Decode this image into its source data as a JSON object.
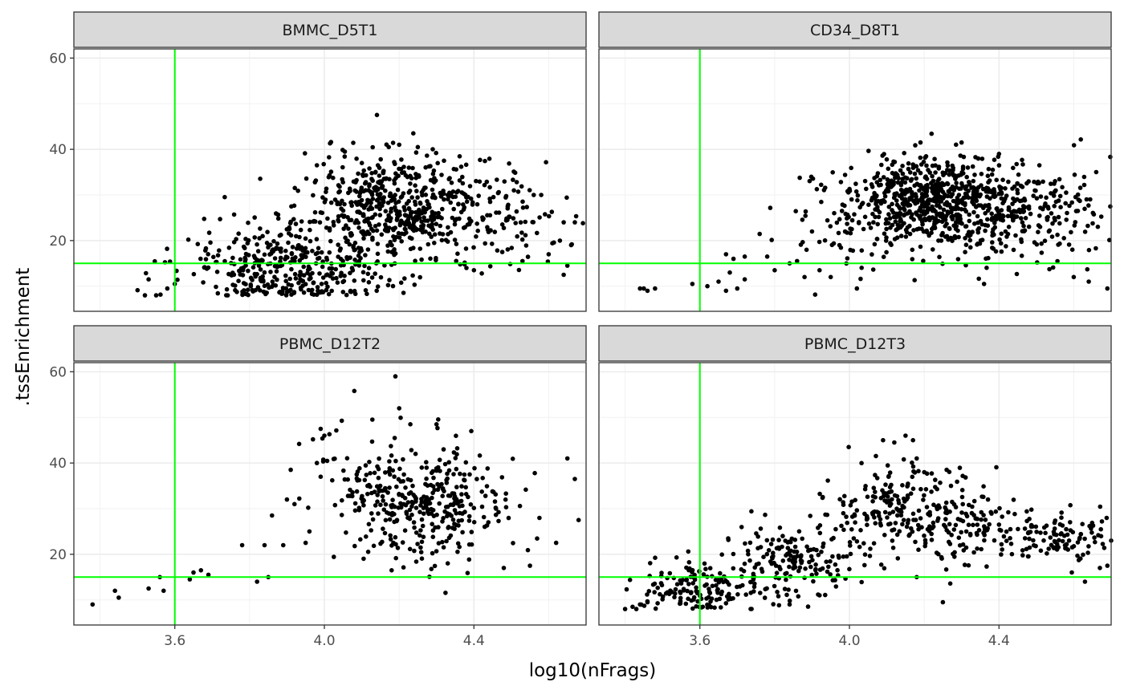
{
  "chart_data": {
    "type": "scatter",
    "layout": "facet_wrap 2x2",
    "xlabel": "log10(nFrags)",
    "ylabel": ".tssEnrichment",
    "xlim": [
      3.33,
      4.7
    ],
    "ylim": [
      4.5,
      62
    ],
    "xticks": [
      3.6,
      4.0,
      4.4
    ],
    "xtick_labels": [
      "3.6",
      "4.0",
      "4.4"
    ],
    "yticks": [
      20,
      40,
      60
    ],
    "ytick_labels": [
      "20",
      "40",
      "60"
    ],
    "threshold_lines": {
      "x": 3.6,
      "y": 15,
      "color": "#00ff00"
    },
    "point_color": "#000000",
    "grid": true,
    "panels": [
      {
        "title": "BMMC_D5T1",
        "clusters": [
          {
            "n": 380,
            "cx": 3.9,
            "cy": 14,
            "sx": 0.13,
            "sy": 5
          },
          {
            "n": 480,
            "cx": 4.18,
            "cy": 28,
            "sx": 0.12,
            "sy": 6
          },
          {
            "n": 140,
            "cx": 4.42,
            "cy": 25,
            "sx": 0.12,
            "sy": 6
          }
        ],
        "points": [
          [
            3.52,
            8.0
          ],
          [
            3.55,
            8.0
          ],
          [
            3.53,
            11.5
          ],
          [
            3.58,
            9.5
          ],
          [
            3.6,
            10.5
          ],
          [
            4.2,
            41.0
          ],
          [
            4.25,
            40.5
          ],
          [
            4.32,
            37.5
          ],
          [
            3.98,
            36.5
          ],
          [
            4.56,
            30.0
          ],
          [
            4.58,
            30.0
          ],
          [
            4.64,
            24.0
          ],
          [
            4.67,
            24.0
          ],
          [
            4.63,
            20.0
          ],
          [
            4.66,
            19.0
          ],
          [
            4.6,
            17.0
          ],
          [
            4.64,
            12.5
          ],
          [
            4.65,
            14.5
          ],
          [
            4.53,
            15.5
          ],
          [
            4.4,
            13.5
          ],
          [
            4.38,
            14.0
          ],
          [
            4.14,
            9.0
          ]
        ]
      },
      {
        "title": "CD34_D8T1",
        "clusters": [
          {
            "n": 520,
            "cx": 4.22,
            "cy": 29,
            "sx": 0.1,
            "sy": 4.5
          },
          {
            "n": 340,
            "cx": 4.42,
            "cy": 26,
            "sx": 0.15,
            "sy": 5
          },
          {
            "n": 70,
            "cx": 3.97,
            "cy": 22,
            "sx": 0.08,
            "sy": 6
          }
        ],
        "points": [
          [
            3.44,
            9.5
          ],
          [
            3.45,
            9.5
          ],
          [
            3.46,
            9.0
          ],
          [
            3.48,
            9.5
          ],
          [
            3.58,
            10.5
          ],
          [
            3.62,
            10.0
          ],
          [
            3.65,
            11.0
          ],
          [
            3.67,
            9.0
          ],
          [
            3.7,
            9.5
          ],
          [
            3.72,
            11.5
          ],
          [
            3.68,
            13.0
          ],
          [
            3.67,
            17.0
          ],
          [
            3.69,
            16.0
          ],
          [
            3.72,
            16.5
          ],
          [
            3.78,
            16.5
          ],
          [
            3.8,
            13.5
          ],
          [
            3.84,
            15.0
          ],
          [
            3.86,
            15.5
          ],
          [
            3.88,
            12.0
          ],
          [
            3.92,
            13.5
          ],
          [
            3.95,
            12.0
          ],
          [
            4.02,
            9.5
          ],
          [
            4.36,
            10.5
          ],
          [
            4.6,
            12.0
          ],
          [
            4.64,
            11.0
          ],
          [
            4.69,
            9.5
          ],
          [
            4.66,
            35.0
          ],
          [
            4.19,
            41.5
          ],
          [
            4.3,
            41.5
          ],
          [
            4.4,
            39.0
          ],
          [
            3.98,
            26.5
          ],
          [
            3.9,
            22.0
          ]
        ]
      },
      {
        "title": "PBMC_D12T2",
        "clusters": [
          {
            "n": 300,
            "cx": 4.28,
            "cy": 30,
            "sx": 0.1,
            "sy": 6.5
          },
          {
            "n": 80,
            "cx": 4.1,
            "cy": 36,
            "sx": 0.08,
            "sy": 7
          }
        ],
        "points": [
          [
            3.38,
            9.0
          ],
          [
            3.44,
            12.0
          ],
          [
            3.45,
            10.5
          ],
          [
            3.53,
            12.5
          ],
          [
            3.57,
            12.0
          ],
          [
            3.56,
            15.0
          ],
          [
            3.64,
            14.5
          ],
          [
            3.65,
            16.0
          ],
          [
            3.67,
            16.5
          ],
          [
            3.69,
            15.5
          ],
          [
            3.78,
            22.0
          ],
          [
            3.82,
            14.0
          ],
          [
            3.85,
            15.0
          ],
          [
            3.84,
            22.0
          ],
          [
            3.86,
            28.5
          ],
          [
            3.89,
            22.0
          ],
          [
            3.9,
            32.0
          ],
          [
            3.92,
            31.0
          ],
          [
            3.91,
            38.5
          ],
          [
            3.95,
            22.5
          ],
          [
            3.96,
            25.0
          ],
          [
            3.98,
            40.0
          ],
          [
            3.99,
            37.0
          ],
          [
            4.0,
            46.0
          ],
          [
            3.99,
            47.5
          ],
          [
            4.08,
            55.8
          ],
          [
            4.19,
            59.0
          ],
          [
            4.2,
            52.0
          ],
          [
            4.23,
            48.5
          ],
          [
            4.3,
            48.5
          ],
          [
            4.65,
            41.0
          ],
          [
            4.67,
            36.5
          ],
          [
            4.68,
            27.5
          ],
          [
            4.62,
            22.5
          ],
          [
            4.55,
            17.5
          ],
          [
            4.48,
            17.0
          ],
          [
            4.33,
            18.0
          ],
          [
            4.18,
            16.5
          ]
        ]
      },
      {
        "title": "PBMC_D12T3",
        "clusters": [
          {
            "n": 170,
            "cx": 3.62,
            "cy": 12.5,
            "sx": 0.1,
            "sy": 3
          },
          {
            "n": 150,
            "cx": 3.86,
            "cy": 19,
            "sx": 0.08,
            "sy": 4
          },
          {
            "n": 170,
            "cx": 4.12,
            "cy": 30,
            "sx": 0.09,
            "sy": 5
          },
          {
            "n": 120,
            "cx": 4.3,
            "cy": 27,
            "sx": 0.08,
            "sy": 5
          },
          {
            "n": 120,
            "cx": 4.55,
            "cy": 24,
            "sx": 0.09,
            "sy": 3
          }
        ],
        "points": [
          [
            3.4,
            8.0
          ],
          [
            3.42,
            8.5
          ],
          [
            3.44,
            9.0
          ],
          [
            3.43,
            8.0
          ],
          [
            3.46,
            9.5
          ],
          [
            4.15,
            46.0
          ],
          [
            4.17,
            45.0
          ],
          [
            4.09,
            45.0
          ],
          [
            4.12,
            44.5
          ],
          [
            4.18,
            41.0
          ],
          [
            4.2,
            38.0
          ],
          [
            4.26,
            38.5
          ],
          [
            4.18,
            15.0
          ],
          [
            4.25,
            9.5
          ],
          [
            4.63,
            14.0
          ],
          [
            4.67,
            17.0
          ],
          [
            4.69,
            17.5
          ],
          [
            4.7,
            23.0
          ],
          [
            3.92,
            11.0
          ],
          [
            3.84,
            9.0
          ]
        ]
      }
    ]
  }
}
